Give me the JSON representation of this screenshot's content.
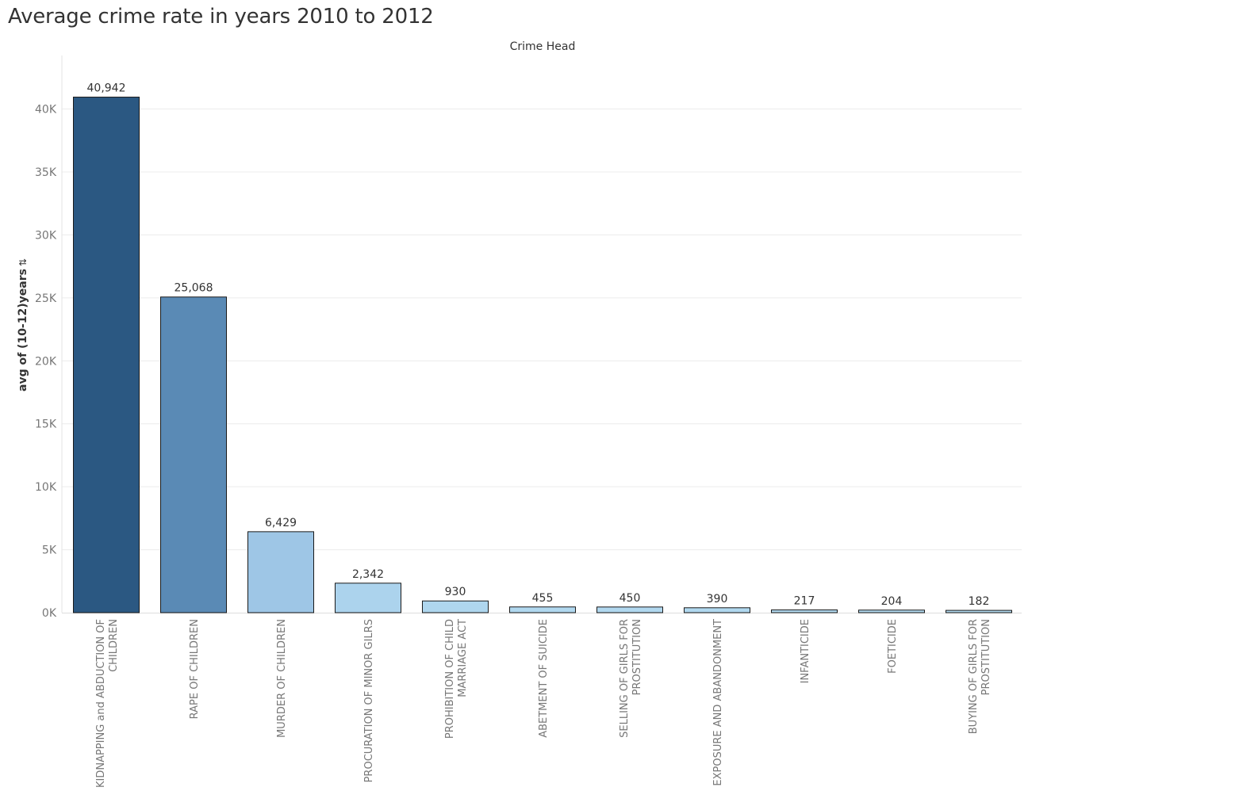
{
  "title": "Average crime rate in years 2010 to 2012",
  "column_header": "Crime Head",
  "y_axis": {
    "label": "avg of (10-12)years",
    "sort_icon": "sort-descending-icon"
  },
  "chart_data": {
    "type": "bar",
    "title": "Average crime rate in years 2010 to 2012",
    "xlabel": "Crime Head",
    "ylabel": "avg of (10-12)years",
    "ylim": [
      0,
      44000
    ],
    "yticks": [
      0,
      5000,
      10000,
      15000,
      20000,
      25000,
      30000,
      35000,
      40000
    ],
    "ytick_labels": [
      "0K",
      "5K",
      "10K",
      "15K",
      "20K",
      "25K",
      "30K",
      "35K",
      "40K"
    ],
    "grid": true,
    "categories": [
      "KIDNAPPING and ABDUCTION OF CHILDREN",
      "RAPE OF CHILDREN",
      "MURDER OF CHILDREN",
      "PROCURATION OF MINOR GILRS",
      "PROHIBITION OF CHILD MARRIAGE ACT",
      "ABETMENT OF SUICIDE",
      "SELLING OF GIRLS FOR PROSTITUTION",
      "EXPOSURE AND ABANDONMENT",
      "INFANTICIDE",
      "FOETICIDE",
      "BUYING OF GIRLS FOR PROSTITUTION"
    ],
    "category_label_lines": [
      [
        "KIDNAPPING and ABDUCTION OF",
        "CHILDREN"
      ],
      [
        "RAPE OF CHILDREN"
      ],
      [
        "MURDER OF CHILDREN"
      ],
      [
        "PROCURATION OF MINOR GILRS"
      ],
      [
        "PROHIBITION OF CHILD",
        "MARRIAGE ACT"
      ],
      [
        "ABETMENT OF SUICIDE"
      ],
      [
        "SELLING OF GIRLS FOR",
        "PROSTITUTION"
      ],
      [
        "EXPOSURE AND ABANDONMENT"
      ],
      [
        "INFANTICIDE"
      ],
      [
        "FOETICIDE"
      ],
      [
        "BUYING OF GIRLS FOR",
        "PROSTITUTION"
      ]
    ],
    "values": [
      40942,
      25068,
      6429,
      2342,
      930,
      455,
      450,
      390,
      217,
      204,
      182
    ],
    "value_labels": [
      "40,942",
      "25,068",
      "6,429",
      "2,342",
      "930",
      "455",
      "450",
      "390",
      "217",
      "204",
      "182"
    ],
    "colors": [
      "#2b5882",
      "#5a8ab5",
      "#9ec6e6",
      "#acd3ed",
      "#afd6ee",
      "#b1d8ef",
      "#b1d8ef",
      "#b1d8ef",
      "#b2d9ef",
      "#b2d9ef",
      "#b2d9ef"
    ],
    "bar_outline_color": "#1a1a1a",
    "gridline_color": "#ececec"
  }
}
